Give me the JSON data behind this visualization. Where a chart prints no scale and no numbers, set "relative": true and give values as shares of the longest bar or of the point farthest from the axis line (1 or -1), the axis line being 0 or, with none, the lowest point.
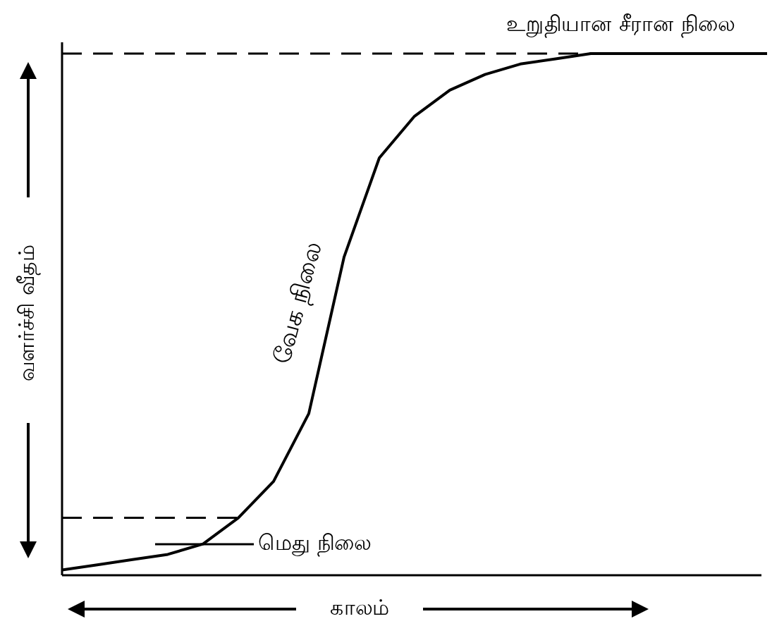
{
  "chart_data": {
    "type": "line",
    "relative": true,
    "xlabel": "காலம்",
    "ylabel": "வளர்ச்சி வீதம்",
    "annotations": [
      "உறுதியான சீரான நிலை",
      "வேக நிலை",
      "மெது நிலை"
    ],
    "categories": [
      null,
      null,
      null,
      null,
      null,
      null,
      null,
      null,
      null,
      null,
      null,
      null,
      null,
      null,
      null,
      null,
      null,
      null,
      null,
      null,
      null
    ],
    "series": [
      {
        "color": "#000000",
        "values": [
          0.01,
          0.02,
          0.03,
          0.04,
          0.06,
          0.11,
          0.18,
          0.31,
          0.61,
          0.8,
          0.88,
          0.93,
          0.96,
          0.98,
          0.99,
          1,
          1,
          1,
          1,
          1,
          1
        ]
      }
    ],
    "ref_lines": [
      {
        "axis": "y",
        "value": 1,
        "line_style": "dashed"
      },
      {
        "axis": "y",
        "value": 0.11,
        "line_style": "dashed"
      }
    ],
    "marker": "none",
    "line_style": "solid"
  }
}
